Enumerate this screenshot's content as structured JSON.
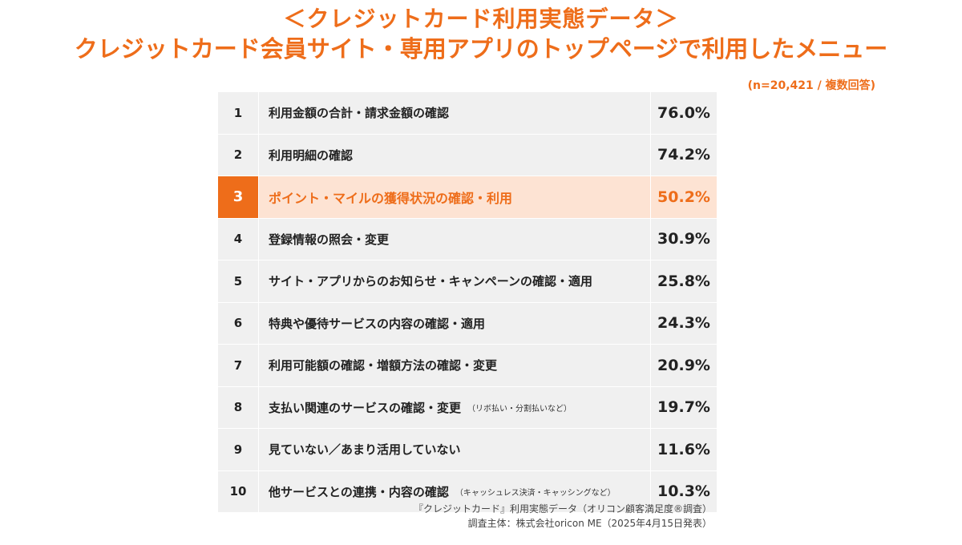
{
  "header": {
    "title_line1": "＜クレジットカード利用実態データ＞",
    "title_line2": "クレジットカード会員サイト・専用アプリのトップページで利用したメニュー",
    "sample_note": "(n=20,421 / 複数回答)"
  },
  "colors": {
    "accent": "#ee6d1a",
    "highlight_bg": "#fde3d3",
    "row_bg": "#f0f0f0"
  },
  "chart_data": {
    "type": "table",
    "title": "クレジットカード会員サイト・専用アプリのトップページで利用したメニュー",
    "unit": "%",
    "highlight_rank": 3,
    "rows": [
      {
        "rank": "1",
        "label": "利用金額の合計・請求金額の確認",
        "note": "",
        "value": "76.0%"
      },
      {
        "rank": "2",
        "label": "利用明細の確認",
        "note": "",
        "value": "74.2%"
      },
      {
        "rank": "3",
        "label": "ポイント・マイルの獲得状況の確認・利用",
        "note": "",
        "value": "50.2%"
      },
      {
        "rank": "4",
        "label": "登録情報の照会・変更",
        "note": "",
        "value": "30.9%"
      },
      {
        "rank": "5",
        "label": "サイト・アプリからのお知らせ・キャンペーンの確認・適用",
        "note": "",
        "value": "25.8%"
      },
      {
        "rank": "6",
        "label": "特典や優待サービスの内容の確認・適用",
        "note": "",
        "value": "24.3%"
      },
      {
        "rank": "7",
        "label": "利用可能額の確認・増額方法の確認・変更",
        "note": "",
        "value": "20.9%"
      },
      {
        "rank": "8",
        "label": "支払い関連のサービスの確認・変更",
        "note": "（リボ払い・分割払いなど）",
        "value": "19.7%"
      },
      {
        "rank": "9",
        "label": "見ていない／あまり活用していない",
        "note": "",
        "value": "11.6%"
      },
      {
        "rank": "10",
        "label": "他サービスとの連携・内容の確認",
        "note": "（キャッシュレス決済・キャッシングなど）",
        "value": "10.3%"
      }
    ]
  },
  "footer": {
    "source_line1": "『クレジットカード』利用実態データ（オリコン顧客満足度®調査）",
    "source_line2": "調査主体：株式会社oricon ME（2025年4月15日発表）"
  }
}
